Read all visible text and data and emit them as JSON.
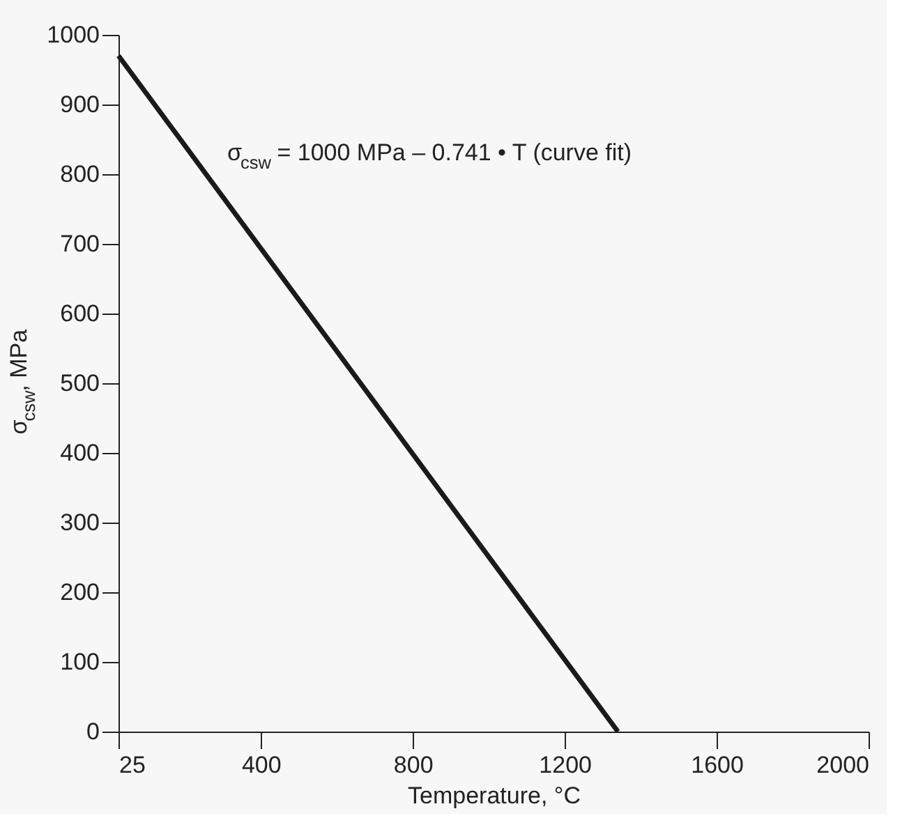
{
  "chart_data": {
    "type": "line",
    "xlabel": "Temperature, °C",
    "ylabel": "σ$_{csw}$, MPa",
    "x": [
      25,
      1340
    ],
    "series": [
      {
        "color": "#1a1a1a",
        "values": [
          970,
          0
        ]
      }
    ],
    "xlim": [
      25,
      2000
    ],
    "xticks": [
      25,
      400,
      800,
      1200,
      1600,
      2000
    ],
    "ylim": [
      0,
      1000
    ],
    "yticks": [
      0,
      100,
      200,
      300,
      400,
      500,
      600,
      700,
      800,
      900,
      1000
    ],
    "grid": false,
    "marker": "none",
    "line_style": "solid",
    "annotations": [
      {
        "text": "σ$_{csw}$ = 1000 MPa – 0.741 • T (curve fit)",
        "x": 260,
        "y": 800
      }
    ]
  }
}
